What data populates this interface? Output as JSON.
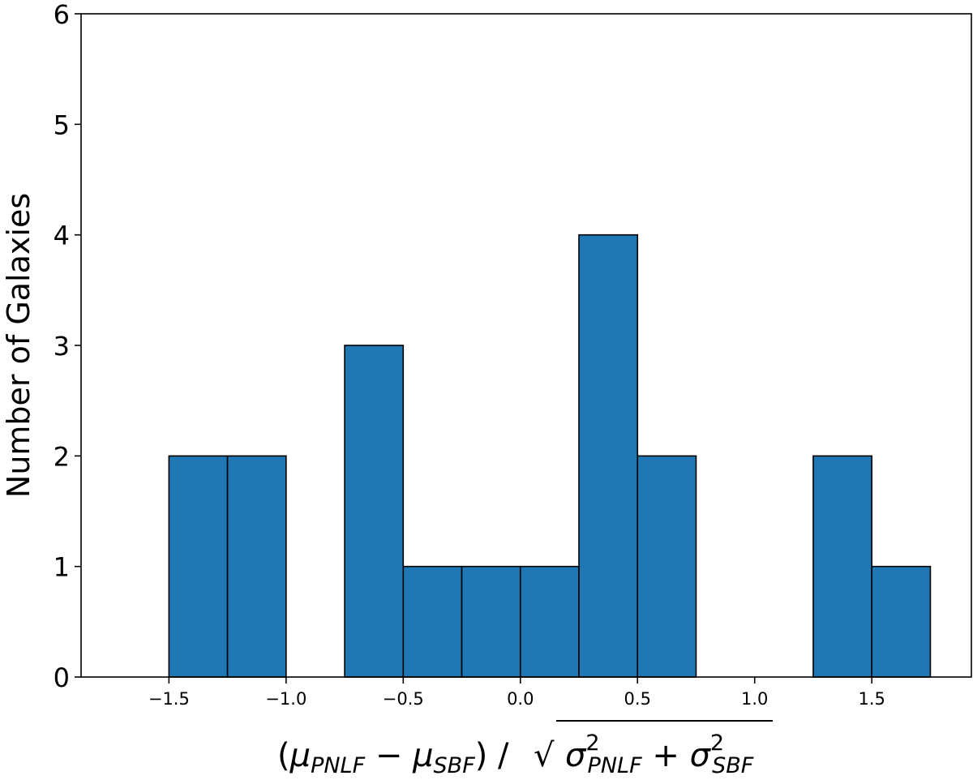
{
  "chart_data": {
    "type": "bar",
    "subtype": "histogram",
    "bins": [
      {
        "x0": -1.5,
        "x1": -1.25,
        "count": 2
      },
      {
        "x0": -1.25,
        "x1": -1.0,
        "count": 2
      },
      {
        "x0": -0.75,
        "x1": -0.5,
        "count": 3
      },
      {
        "x0": -0.5,
        "x1": -0.25,
        "count": 1
      },
      {
        "x0": -0.25,
        "x1": 0.0,
        "count": 1
      },
      {
        "x0": 0.0,
        "x1": 0.25,
        "count": 1
      },
      {
        "x0": 0.25,
        "x1": 0.5,
        "count": 4
      },
      {
        "x0": 0.5,
        "x1": 0.75,
        "count": 2
      },
      {
        "x0": 1.25,
        "x1": 1.5,
        "count": 2
      },
      {
        "x0": 1.5,
        "x1": 1.75,
        "count": 1
      }
    ],
    "ylabel": "Number of Galaxies",
    "xlabel_parts": {
      "open_paren": "(",
      "mu": "μ",
      "sub_pnlf": "PNLF",
      "minus": " − ",
      "sub_sbf": "SBF",
      "close_slash": ") / ",
      "sqrt": "√",
      "sigma": "σ",
      "sup2": "2",
      "plus": " + "
    },
    "xlim": [
      -1.875,
      1.925
    ],
    "ylim": [
      0,
      6
    ],
    "xticks": [
      "−1.5",
      "−1.0",
      "−0.5",
      "0.0",
      "0.5",
      "1.0",
      "1.5"
    ],
    "xtick_values": [
      -1.5,
      -1.0,
      -0.5,
      0.0,
      0.5,
      1.0,
      1.5
    ],
    "yticks": [
      "0",
      "1",
      "2",
      "3",
      "4",
      "5",
      "6"
    ],
    "ytick_values": [
      0,
      1,
      2,
      3,
      4,
      5,
      6
    ],
    "bar_color": "#1f77b4",
    "edge_color": "#000000",
    "grid": false
  }
}
